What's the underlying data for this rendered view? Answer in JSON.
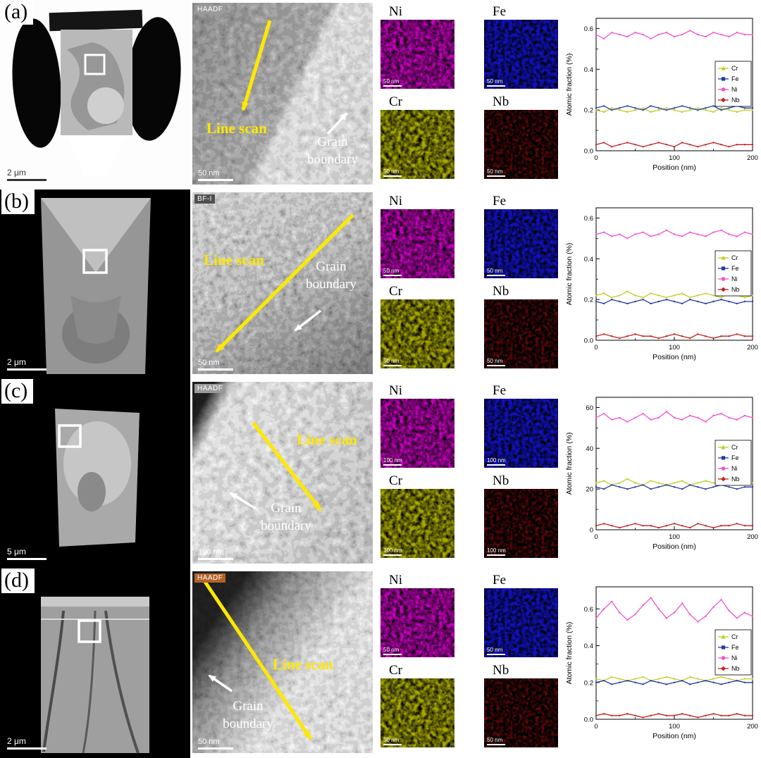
{
  "figure": {
    "rows": [
      {
        "panel_label": "(a)",
        "tem": {
          "scale_bar": "2 μm"
        },
        "micrograph": {
          "tag": "HAADF",
          "tag_bg": "#9a9a9a",
          "line_scan_label": "Line scan",
          "grain_boundary_label": "Grain boundary",
          "scale_bar": "50 nm"
        },
        "maps": [
          {
            "element": "Ni",
            "color": "#c400bc",
            "scale_bar": "50 nm"
          },
          {
            "element": "Fe",
            "color": "#1212c0",
            "scale_bar": "50 nm"
          },
          {
            "element": "Cr",
            "color": "#a8a800",
            "scale_bar": "50 nm"
          },
          {
            "element": "Nb",
            "color": "#780a0a",
            "scale_bar": "50 nm"
          }
        ]
      },
      {
        "panel_label": "(b)",
        "tem": {
          "scale_bar": "2 μm"
        },
        "micrograph": {
          "tag": "BF-I",
          "tag_bg": "#4f4f4f",
          "line_scan_label": "Line scan",
          "grain_boundary_label": "Grain boundary",
          "scale_bar": "50 nm"
        },
        "maps": [
          {
            "element": "Ni",
            "color": "#c400bc",
            "scale_bar": "50 nm"
          },
          {
            "element": "Fe",
            "color": "#1212c0",
            "scale_bar": "50 nm"
          },
          {
            "element": "Cr",
            "color": "#a8a800",
            "scale_bar": "50 nm"
          },
          {
            "element": "Nb",
            "color": "#780a0a",
            "scale_bar": "50 nm"
          }
        ]
      },
      {
        "panel_label": "(c)",
        "tem": {
          "scale_bar": "5 μm"
        },
        "micrograph": {
          "tag": "HAADF",
          "tag_bg": "#9a9a9a",
          "line_scan_label": "Line scan",
          "grain_boundary_label": "Grain boundary",
          "scale_bar": "100 nm"
        },
        "maps": [
          {
            "element": "Ni",
            "color": "#c400bc",
            "scale_bar": "100 nm"
          },
          {
            "element": "Fe",
            "color": "#1212c0",
            "scale_bar": "100 nm"
          },
          {
            "element": "Cr",
            "color": "#a8a800",
            "scale_bar": "100 nm"
          },
          {
            "element": "Nb",
            "color": "#780a0a",
            "scale_bar": "100 nm"
          }
        ]
      },
      {
        "panel_label": "(d)",
        "tem": {
          "scale_bar": "2 μm"
        },
        "micrograph": {
          "tag": "HAADF",
          "tag_bg": "#b4622a",
          "line_scan_label": "Line scan",
          "grain_boundary_label": "Grain boundary",
          "scale_bar": "50 nm"
        },
        "maps": [
          {
            "element": "Ni",
            "color": "#c400bc",
            "scale_bar": "50 nm"
          },
          {
            "element": "Fe",
            "color": "#1212c0",
            "scale_bar": "50 nm"
          },
          {
            "element": "Cr",
            "color": "#a8a800",
            "scale_bar": "50 nm"
          },
          {
            "element": "Nb",
            "color": "#780a0a",
            "scale_bar": "50 nm"
          }
        ]
      }
    ]
  },
  "chart_data": [
    {
      "type": "line",
      "xlabel": "Position (nm)",
      "ylabel": "Atomic fraction (%)",
      "xlim": [
        0,
        200
      ],
      "ylim": [
        0,
        0.65
      ],
      "xticks": [
        0,
        100,
        200
      ],
      "xtick_labels": [
        "0",
        "100",
        "200"
      ],
      "yticks": [
        0,
        0.2,
        0.4,
        0.6
      ],
      "ytick_labels": [
        "0.0",
        "0.2",
        "0.4",
        "0.6"
      ],
      "legend_position": "right",
      "grid": false,
      "x": [
        0,
        10,
        20,
        30,
        40,
        50,
        60,
        70,
        80,
        90,
        100,
        110,
        120,
        130,
        140,
        150,
        160,
        170,
        180,
        190,
        200
      ],
      "series": [
        {
          "name": "Cr",
          "color": "#bcd022",
          "values": [
            0.2,
            0.19,
            0.21,
            0.2,
            0.19,
            0.2,
            0.21,
            0.19,
            0.2,
            0.21,
            0.2,
            0.19,
            0.2,
            0.21,
            0.2,
            0.19,
            0.21,
            0.2,
            0.19,
            0.2,
            0.2
          ]
        },
        {
          "name": "Fe",
          "color": "#1f3c9e",
          "values": [
            0.21,
            0.22,
            0.2,
            0.21,
            0.22,
            0.21,
            0.2,
            0.22,
            0.21,
            0.2,
            0.21,
            0.22,
            0.21,
            0.2,
            0.21,
            0.22,
            0.2,
            0.21,
            0.22,
            0.21,
            0.21
          ]
        },
        {
          "name": "Ni",
          "color": "#ef52d2",
          "values": [
            0.57,
            0.55,
            0.58,
            0.57,
            0.56,
            0.58,
            0.57,
            0.55,
            0.57,
            0.58,
            0.56,
            0.57,
            0.59,
            0.57,
            0.56,
            0.58,
            0.57,
            0.56,
            0.58,
            0.57,
            0.57
          ]
        },
        {
          "name": "Nb",
          "color": "#c41e1e",
          "values": [
            0.03,
            0.04,
            0.02,
            0.03,
            0.04,
            0.03,
            0.02,
            0.03,
            0.04,
            0.03,
            0.02,
            0.04,
            0.03,
            0.02,
            0.03,
            0.04,
            0.03,
            0.02,
            0.03,
            0.03,
            0.03
          ]
        }
      ]
    },
    {
      "type": "line",
      "xlabel": "Position (nm)",
      "ylabel": "Atomic fraction (%)",
      "xlim": [
        0,
        200
      ],
      "ylim": [
        0,
        0.65
      ],
      "xticks": [
        0,
        100,
        200
      ],
      "xtick_labels": [
        "0",
        "100",
        "200"
      ],
      "yticks": [
        0,
        0.2,
        0.4,
        0.6
      ],
      "ytick_labels": [
        "0.0",
        "0.2",
        "0.4",
        "0.6"
      ],
      "legend_position": "right",
      "grid": false,
      "x": [
        0,
        10,
        20,
        30,
        40,
        50,
        60,
        70,
        80,
        90,
        100,
        110,
        120,
        130,
        140,
        150,
        160,
        170,
        180,
        190,
        200
      ],
      "series": [
        {
          "name": "Cr",
          "color": "#bcd022",
          "values": [
            0.22,
            0.23,
            0.21,
            0.22,
            0.24,
            0.22,
            0.21,
            0.23,
            0.22,
            0.21,
            0.22,
            0.23,
            0.21,
            0.22,
            0.23,
            0.22,
            0.21,
            0.23,
            0.22,
            0.21,
            0.22
          ]
        },
        {
          "name": "Fe",
          "color": "#1f3c9e",
          "values": [
            0.19,
            0.18,
            0.2,
            0.19,
            0.18,
            0.19,
            0.2,
            0.18,
            0.19,
            0.2,
            0.19,
            0.18,
            0.2,
            0.19,
            0.18,
            0.19,
            0.2,
            0.19,
            0.18,
            0.19,
            0.19
          ]
        },
        {
          "name": "Ni",
          "color": "#ef52d2",
          "values": [
            0.52,
            0.53,
            0.51,
            0.52,
            0.5,
            0.52,
            0.53,
            0.51,
            0.52,
            0.54,
            0.52,
            0.51,
            0.53,
            0.52,
            0.51,
            0.53,
            0.54,
            0.52,
            0.51,
            0.53,
            0.52
          ]
        },
        {
          "name": "Nb",
          "color": "#c41e1e",
          "values": [
            0.02,
            0.03,
            0.02,
            0.01,
            0.02,
            0.03,
            0.02,
            0.02,
            0.01,
            0.02,
            0.03,
            0.02,
            0.01,
            0.03,
            0.02,
            0.01,
            0.02,
            0.02,
            0.03,
            0.02,
            0.02
          ]
        }
      ]
    },
    {
      "type": "line",
      "xlabel": "Position (nm)",
      "ylabel": "Atomic fraction (%)",
      "xlim": [
        0,
        200
      ],
      "ylim": [
        0,
        65
      ],
      "xticks": [
        0,
        100,
        200
      ],
      "xtick_labels": [
        "0",
        "100",
        "200"
      ],
      "yticks": [
        0,
        20,
        40,
        60
      ],
      "ytick_labels": [
        "0",
        "20",
        "40",
        "60"
      ],
      "legend_position": "right",
      "grid": false,
      "x": [
        0,
        10,
        20,
        30,
        40,
        50,
        60,
        70,
        80,
        90,
        100,
        110,
        120,
        130,
        140,
        150,
        160,
        170,
        180,
        190,
        200
      ],
      "series": [
        {
          "name": "Cr",
          "color": "#bcd022",
          "values": [
            23,
            24,
            22,
            23,
            25,
            23,
            22,
            24,
            23,
            22,
            23,
            24,
            22,
            23,
            24,
            23,
            22,
            24,
            23,
            22,
            23
          ]
        },
        {
          "name": "Fe",
          "color": "#1f3c9e",
          "values": [
            21,
            20,
            22,
            21,
            20,
            21,
            22,
            20,
            21,
            22,
            21,
            20,
            22,
            21,
            20,
            21,
            22,
            21,
            20,
            21,
            21
          ]
        },
        {
          "name": "Ni",
          "color": "#ef52d2",
          "values": [
            55,
            57,
            54,
            55,
            53,
            55,
            57,
            54,
            55,
            58,
            55,
            54,
            56,
            55,
            53,
            56,
            57,
            55,
            54,
            56,
            55
          ]
        },
        {
          "name": "Nb",
          "color": "#c41e1e",
          "values": [
            2,
            3,
            2,
            1,
            2,
            3,
            2,
            2,
            1,
            2,
            3,
            2,
            1,
            3,
            2,
            1,
            2,
            2,
            3,
            2,
            2
          ]
        }
      ]
    },
    {
      "type": "line",
      "xlabel": "Position (nm)",
      "ylabel": "Atomic fraction (%)",
      "xlim": [
        0,
        200
      ],
      "ylim": [
        0,
        0.72
      ],
      "xticks": [
        0,
        100,
        200
      ],
      "xtick_labels": [
        "0",
        "100",
        "200"
      ],
      "yticks": [
        0,
        0.2,
        0.4,
        0.6
      ],
      "ytick_labels": [
        "0.0",
        "0.2",
        "0.4",
        "0.6"
      ],
      "legend_position": "right",
      "grid": false,
      "x": [
        0,
        10,
        20,
        30,
        40,
        50,
        60,
        70,
        80,
        90,
        100,
        110,
        120,
        130,
        140,
        150,
        160,
        170,
        180,
        190,
        200
      ],
      "series": [
        {
          "name": "Cr",
          "color": "#bcd022",
          "values": [
            0.22,
            0.21,
            0.23,
            0.22,
            0.21,
            0.22,
            0.23,
            0.21,
            0.22,
            0.23,
            0.22,
            0.21,
            0.23,
            0.22,
            0.21,
            0.22,
            0.23,
            0.22,
            0.21,
            0.22,
            0.22
          ]
        },
        {
          "name": "Fe",
          "color": "#1f3c9e",
          "values": [
            0.2,
            0.21,
            0.19,
            0.2,
            0.21,
            0.2,
            0.19,
            0.21,
            0.2,
            0.19,
            0.2,
            0.21,
            0.19,
            0.2,
            0.21,
            0.2,
            0.19,
            0.2,
            0.21,
            0.2,
            0.2
          ]
        },
        {
          "name": "Ni",
          "color": "#ef52d2",
          "values": [
            0.55,
            0.6,
            0.64,
            0.58,
            0.54,
            0.57,
            0.62,
            0.66,
            0.6,
            0.55,
            0.58,
            0.63,
            0.57,
            0.53,
            0.56,
            0.61,
            0.65,
            0.59,
            0.55,
            0.58,
            0.56
          ]
        },
        {
          "name": "Nb",
          "color": "#c41e1e",
          "values": [
            0.02,
            0.03,
            0.02,
            0.02,
            0.03,
            0.02,
            0.01,
            0.02,
            0.03,
            0.02,
            0.02,
            0.03,
            0.02,
            0.01,
            0.02,
            0.03,
            0.02,
            0.02,
            0.03,
            0.02,
            0.02
          ]
        }
      ]
    }
  ]
}
